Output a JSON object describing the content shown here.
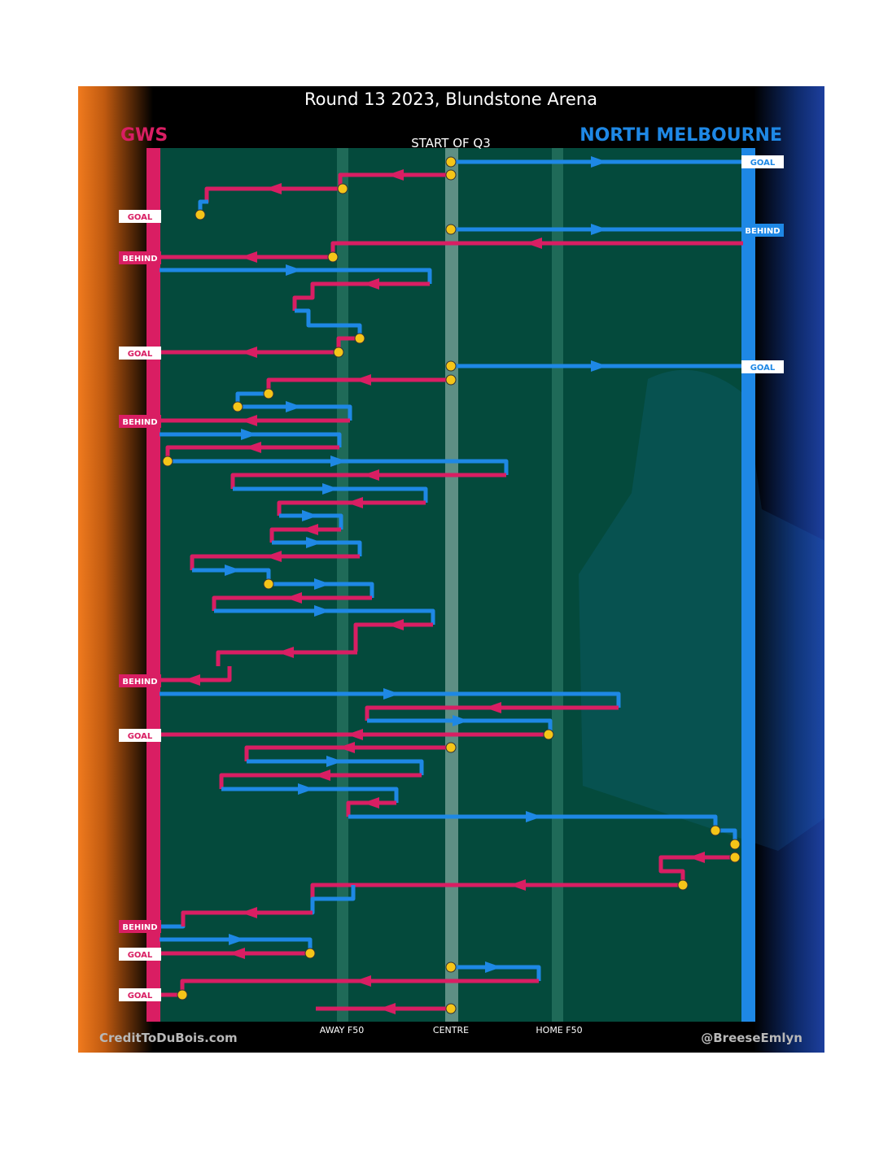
{
  "title": "Round 13 2023, Blundstone Arena",
  "teams": {
    "left": {
      "name": "GWS",
      "color": "#d91e63"
    },
    "right": {
      "name": "NORTH MELBOURNE",
      "color": "#1e88e5"
    }
  },
  "start_label": "START OF Q3",
  "zones": {
    "away": "AWAY F50",
    "centre": "CENTRE",
    "home": "HOME F50"
  },
  "footer": {
    "left": "CreditToDuBois.com",
    "right": "@BreeseEmlyn"
  },
  "colors": {
    "field": "#044a3c",
    "orange": "#f07a1e",
    "navy": "#0c1f55",
    "marker": "#f5c518"
  },
  "outcome_badges": [
    {
      "text": "GOAL",
      "team": "right"
    },
    {
      "text": "GOAL",
      "team": "left"
    },
    {
      "text": "BEHIND",
      "team": "right"
    },
    {
      "text": "BEHIND",
      "team": "left"
    },
    {
      "text": "GOAL",
      "team": "left"
    },
    {
      "text": "GOAL",
      "team": "right"
    },
    {
      "text": "BEHIND",
      "team": "left"
    },
    {
      "text": "BEHIND",
      "team": "left"
    },
    {
      "text": "GOAL",
      "team": "left"
    },
    {
      "text": "BEHIND",
      "team": "left"
    },
    {
      "text": "GOAL",
      "team": "left"
    },
    {
      "text": "GOAL",
      "team": "left"
    }
  ]
}
